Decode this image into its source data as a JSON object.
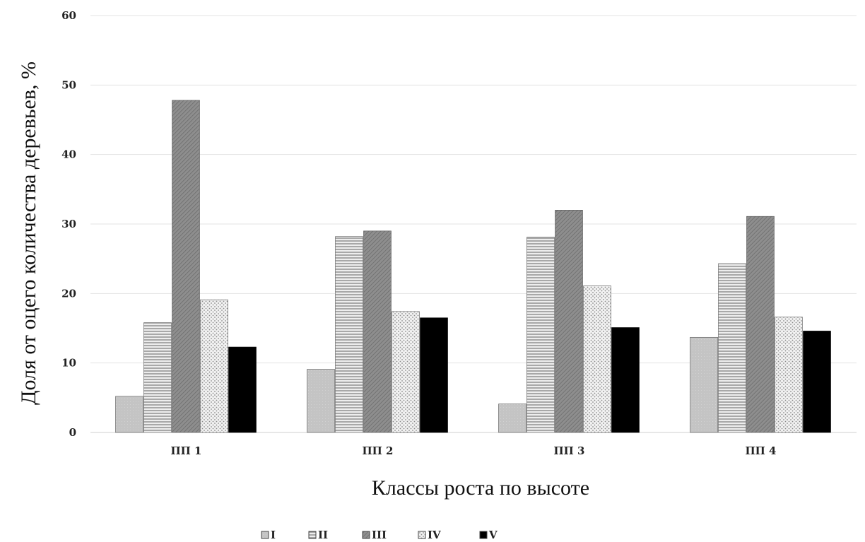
{
  "chart_data": {
    "type": "bar",
    "title": "",
    "xlabel": "Классы роста по высоте",
    "ylabel": "Доля от оцего количества деревьев, %",
    "categories": [
      "ПП 1",
      "ПП 2",
      "ПП 3",
      "ПП 4"
    ],
    "ylim": [
      0,
      60
    ],
    "yticks": [
      "0",
      "10",
      "20",
      "30",
      "40",
      "50",
      "60"
    ],
    "grid": true,
    "legend_position": "bottom",
    "series": [
      {
        "name": "I",
        "values": [
          5.2,
          9.1,
          4.1,
          13.7
        ],
        "color": "#c4c4c4",
        "pattern": "solid-light"
      },
      {
        "name": "II",
        "values": [
          15.8,
          28.2,
          28.1,
          24.3
        ],
        "color": "#e6e6e6",
        "pattern": "horizontal-lines"
      },
      {
        "name": "III",
        "values": [
          47.8,
          29.0,
          32.0,
          31.1
        ],
        "color": "#8c8c8c",
        "pattern": "diagonal-dark"
      },
      {
        "name": "IV",
        "values": [
          19.1,
          17.4,
          21.1,
          16.6
        ],
        "color": "#ececec",
        "pattern": "dots"
      },
      {
        "name": "V",
        "values": [
          12.3,
          16.5,
          15.1,
          14.6
        ],
        "color": "#000000",
        "pattern": "solid-black"
      }
    ]
  }
}
